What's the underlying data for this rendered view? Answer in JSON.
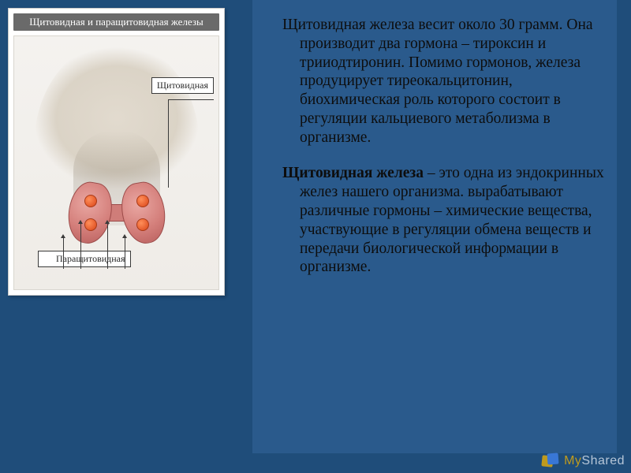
{
  "colors": {
    "slide_bg": "#1f4d7a",
    "panel_bg": "#2a5a8c",
    "card_bg": "#ffffff",
    "card_title_bg": "#6a6a6a",
    "card_title_fg": "#ffffff",
    "text_color": "#0d0d0d",
    "thyroid_fill": "#d47f7b",
    "parathyroid_fill": "#e55a2b",
    "leader_color": "#3a3a3a"
  },
  "typography": {
    "body_fontsize_pt": 15,
    "body_line_height": 1.22,
    "card_title_fontsize_pt": 10,
    "callout_fontsize_pt": 9,
    "font_family": "Times New Roman"
  },
  "anatomy_card": {
    "title": "Щитовидная и паращитовидная железы",
    "label_thyroid": "Щитовидная",
    "label_parathyroid": "Паращитовидная",
    "parathyroid_count": 4
  },
  "paragraphs": {
    "p1_lead": "Щитовидная железа",
    "p1_rest": " весит около 30 грамм. Она производит два гормона – тироксин и трииодтиронин. Помимо гормонов, железа продуцирует тиреокальцитонин, биохимическая роль которого состоит в регуляции кальциевого метаболизма в организме.",
    "p2_lead": "Щитовидная железа",
    "p2_rest": " – это одна из эндокринных желез нашего организма. вырабатывают различные гормоны – химические вещества, участвующие в регуляции обмена веществ и передачи биологической информации в организме."
  },
  "watermark": {
    "prefix": "My",
    "suffix": "Shared"
  }
}
